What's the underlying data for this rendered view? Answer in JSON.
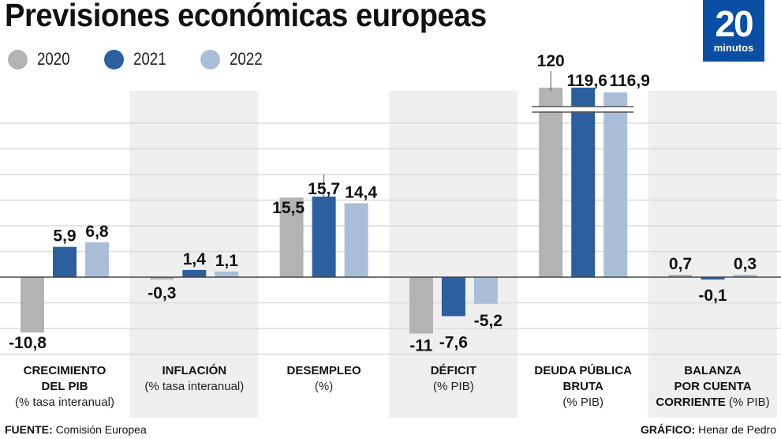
{
  "header": {
    "title": "Previsiones económicas europeas"
  },
  "logo": {
    "number": "20",
    "word": "minutos",
    "color": "#0a4fa3"
  },
  "legend": [
    {
      "label": "2020",
      "color": "#b3b3b3"
    },
    {
      "label": "2021",
      "color": "#2c5f9e"
    },
    {
      "label": "2022",
      "color": "#a9bfd9"
    }
  ],
  "chart_data": {
    "type": "bar",
    "title": "Previsiones económicas europeas",
    "xlabel": "",
    "ylabel": "",
    "grid": true,
    "grid_step": 5,
    "ylim": [
      -15,
      120
    ],
    "axis_break": {
      "category": "DEUDA PÚBLICA BRUTA",
      "note": "bars truncated with break marks"
    },
    "legend_position": "top-left",
    "categories": [
      {
        "name": "CRECIMIENTO DEL PIB",
        "name_lines": [
          "CRECIMIENTO",
          "DEL PIB"
        ],
        "unit": "(% tasa interanual)",
        "shaded": false
      },
      {
        "name": "INFLACIÓN",
        "name_lines": [
          "INFLACIÓN"
        ],
        "unit": "(% tasa interanual)",
        "shaded": true
      },
      {
        "name": "DESEMPLEO",
        "name_lines": [
          "DESEMPLEO"
        ],
        "unit": "(%)",
        "shaded": false
      },
      {
        "name": "DÉFICIT",
        "name_lines": [
          "DÉFICIT"
        ],
        "unit": "(% PIB)",
        "shaded": true
      },
      {
        "name": "DEUDA PÚBLICA BRUTA",
        "name_lines": [
          "DEUDA PÚBLICA",
          "BRUTA"
        ],
        "unit": "(% PIB)",
        "shaded": false
      },
      {
        "name": "BALANZA POR CUENTA CORRIENTE",
        "name_lines": [
          "BALANZA",
          "POR CUENTA",
          "CORRIENTE"
        ],
        "unit": "(% PIB)",
        "shaded": true
      }
    ],
    "series": [
      {
        "name": "2020",
        "color": "#b3b3b3",
        "values": [
          -10.8,
          -0.3,
          15.5,
          -11,
          120,
          0.7
        ],
        "labels": [
          "-10,8",
          "-0,3",
          "15,5",
          "-11",
          "120",
          "0,7"
        ]
      },
      {
        "name": "2021",
        "color": "#2c5f9e",
        "values": [
          5.9,
          1.4,
          15.7,
          -7.6,
          119.6,
          -0.1
        ],
        "labels": [
          "5,9",
          "1,4",
          "15,7",
          "-7,6",
          "119,6",
          "-0,1"
        ]
      },
      {
        "name": "2022",
        "color": "#a9bfd9",
        "values": [
          6.8,
          1.1,
          14.4,
          -5.2,
          116.9,
          0.3
        ],
        "labels": [
          "6,8",
          "1,1",
          "14,4",
          "-5,2",
          "116,9",
          "0,3"
        ]
      }
    ]
  },
  "footer": {
    "source_key": "FUENTE:",
    "source_value": "Comisión Europea",
    "credit_key": "GRÁFICO:",
    "credit_value": "Henar de Pedro"
  }
}
